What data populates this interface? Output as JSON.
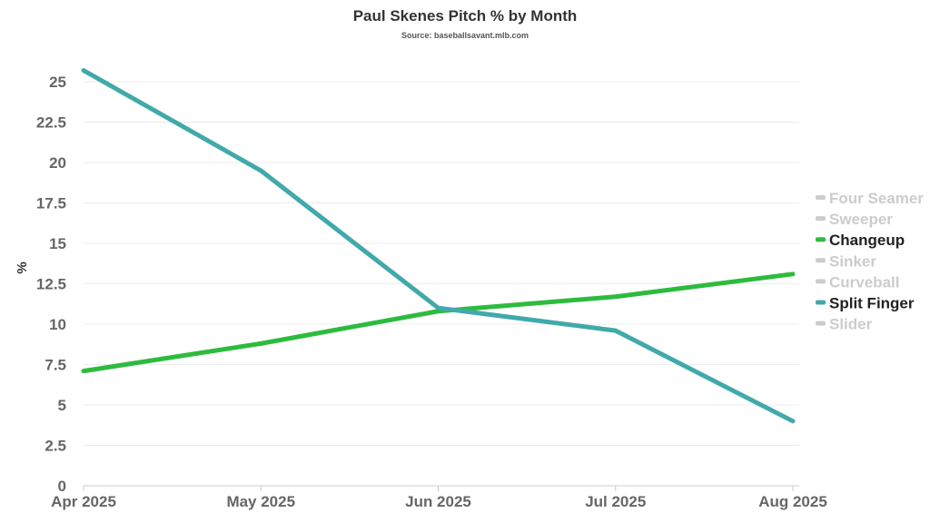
{
  "colors": {
    "changeup": "#2dbb3e",
    "split_finger": "#42a9aa",
    "legend_active_text": "#222222",
    "legend_inactive": "#cccccc"
  },
  "chart_data": {
    "type": "line",
    "title": "Paul Skenes Pitch % by Month",
    "subtitle": "Source: baseballsavant.mlb.com",
    "xlabel": "",
    "ylabel": "%",
    "categories": [
      "Apr 2025",
      "May 2025",
      "Jun 2025",
      "Jul 2025",
      "Aug 2025"
    ],
    "ylim": [
      0,
      25
    ],
    "yticks": [
      "0",
      "2.5",
      "5",
      "7.5",
      "10",
      "12.5",
      "15",
      "17.5",
      "20",
      "22.5",
      "25"
    ],
    "grid": true,
    "legend_position": "right",
    "legend": [
      {
        "name": "Four Seamer",
        "active": false
      },
      {
        "name": "Sweeper",
        "active": false
      },
      {
        "name": "Changeup",
        "active": true,
        "color": "#2dbb3e"
      },
      {
        "name": "Sinker",
        "active": false
      },
      {
        "name": "Curveball",
        "active": false
      },
      {
        "name": "Split Finger",
        "active": true,
        "color": "#42a9aa"
      },
      {
        "name": "Slider",
        "active": false
      }
    ],
    "series": [
      {
        "name": "Changeup",
        "color": "#2dbb3e",
        "values": [
          7.1,
          8.8,
          10.8,
          11.7,
          13.1
        ]
      },
      {
        "name": "Split Finger",
        "color": "#42a9aa",
        "values": [
          25.7,
          19.5,
          11.0,
          9.6,
          4.0
        ]
      }
    ]
  }
}
